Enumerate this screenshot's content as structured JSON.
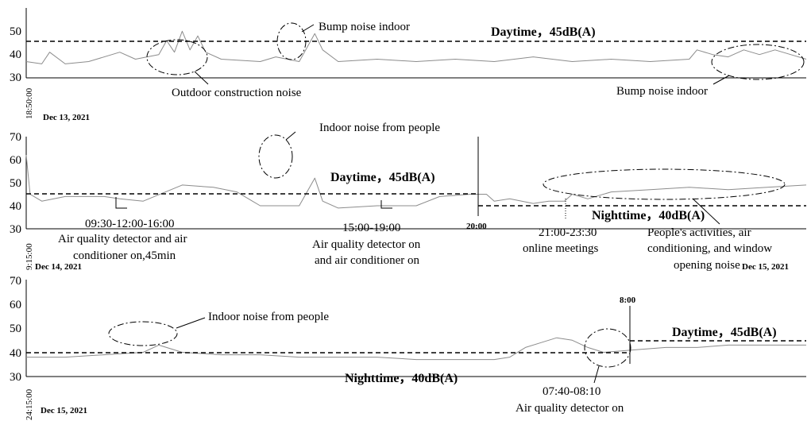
{
  "chart_data": [
    {
      "type": "line",
      "ylim": [
        30,
        60
      ],
      "yticks": [
        "50",
        "40",
        "30"
      ],
      "start_time": "18:50:00",
      "date_label": "Dec 13, 2021",
      "series": [
        {
          "points": [
            [
              0,
              37
            ],
            [
              0.02,
              36
            ],
            [
              0.03,
              41
            ],
            [
              0.05,
              36
            ],
            [
              0.08,
              37
            ],
            [
              0.12,
              41
            ],
            [
              0.14,
              38
            ],
            [
              0.17,
              40
            ],
            [
              0.18,
              46
            ],
            [
              0.19,
              41
            ],
            [
              0.2,
              50
            ],
            [
              0.21,
              42
            ],
            [
              0.22,
              48
            ],
            [
              0.23,
              41
            ],
            [
              0.25,
              38
            ],
            [
              0.3,
              37
            ],
            [
              0.32,
              39
            ],
            [
              0.35,
              37
            ],
            [
              0.36,
              43
            ],
            [
              0.37,
              49
            ],
            [
              0.38,
              42
            ],
            [
              0.4,
              37
            ],
            [
              0.45,
              38
            ],
            [
              0.5,
              37
            ],
            [
              0.55,
              38
            ],
            [
              0.6,
              37
            ],
            [
              0.65,
              39
            ],
            [
              0.7,
              37
            ],
            [
              0.75,
              38
            ],
            [
              0.8,
              37
            ],
            [
              0.85,
              38
            ],
            [
              0.86,
              42
            ],
            [
              0.88,
              40
            ],
            [
              0.9,
              39
            ],
            [
              0.92,
              42
            ],
            [
              0.94,
              40
            ],
            [
              0.96,
              42
            ],
            [
              0.98,
              40
            ],
            [
              1,
              38
            ]
          ]
        }
      ],
      "threshold": {
        "value": 45,
        "label": "Daytime，45dB(A)"
      },
      "annotations": [
        {
          "text": "Outdoor construction noise"
        },
        {
          "text": "Bump noise indoor"
        },
        {
          "text": "Bump noise indoor"
        }
      ]
    },
    {
      "type": "line",
      "ylim": [
        30,
        70
      ],
      "yticks": [
        "70",
        "60",
        "50",
        "40",
        "30"
      ],
      "start_time": "9:15:00",
      "date_label": "Dec 14, 2021",
      "date_label_right": "Dec 15, 2021",
      "marker_label": "20:00",
      "series": [
        {
          "points": [
            [
              0,
              62
            ],
            [
              0.005,
              45
            ],
            [
              0.02,
              42
            ],
            [
              0.05,
              44
            ],
            [
              0.1,
              44
            ],
            [
              0.12,
              43
            ],
            [
              0.15,
              42
            ],
            [
              0.2,
              49
            ],
            [
              0.24,
              48
            ],
            [
              0.27,
              46
            ],
            [
              0.3,
              40
            ],
            [
              0.33,
              40
            ],
            [
              0.35,
              40
            ],
            [
              0.37,
              52
            ],
            [
              0.38,
              42
            ],
            [
              0.4,
              39
            ],
            [
              0.45,
              40
            ],
            [
              0.5,
              40
            ],
            [
              0.53,
              44
            ],
            [
              0.57,
              45
            ],
            [
              0.59,
              45
            ],
            [
              0.6,
              42
            ],
            [
              0.62,
              43
            ],
            [
              0.65,
              41
            ],
            [
              0.67,
              42
            ],
            [
              0.69,
              42
            ],
            [
              0.7,
              45
            ],
            [
              0.72,
              43
            ],
            [
              0.75,
              46
            ],
            [
              0.8,
              47
            ],
            [
              0.85,
              48
            ],
            [
              0.9,
              47
            ],
            [
              0.95,
              48
            ],
            [
              1,
              49
            ]
          ]
        }
      ],
      "thresholds": [
        {
          "value": 45,
          "label": "Daytime，45dB(A)"
        },
        {
          "value": 40,
          "label": "Nighttime，40dB(A)"
        }
      ],
      "annotations": [
        {
          "text": "Indoor noise from people"
        },
        {
          "text": "09:30-12:00-16:00"
        },
        {
          "text": "Air quality detector and air"
        },
        {
          "text": "conditioner on,45min"
        },
        {
          "text": "15:00-19:00"
        },
        {
          "text": "Air quality detector on"
        },
        {
          "text": "and air conditioner on"
        },
        {
          "text": "21:00-23:30"
        },
        {
          "text": "online meetings"
        },
        {
          "text": "People's activities, air"
        },
        {
          "text": "conditioning, and window"
        },
        {
          "text": "opening noise"
        }
      ]
    },
    {
      "type": "line",
      "ylim": [
        30,
        70
      ],
      "yticks": [
        "70",
        "60",
        "50",
        "40",
        "30"
      ],
      "start_time": "24:15:00",
      "date_label": "Dec 15, 2021",
      "marker_label": "8:00",
      "series": [
        {
          "points": [
            [
              0,
              38
            ],
            [
              0.05,
              38
            ],
            [
              0.1,
              39
            ],
            [
              0.15,
              40
            ],
            [
              0.17,
              43
            ],
            [
              0.2,
              40
            ],
            [
              0.25,
              39
            ],
            [
              0.3,
              39
            ],
            [
              0.35,
              38
            ],
            [
              0.4,
              38
            ],
            [
              0.45,
              38
            ],
            [
              0.5,
              37
            ],
            [
              0.55,
              37
            ],
            [
              0.6,
              37
            ],
            [
              0.62,
              38
            ],
            [
              0.64,
              42
            ],
            [
              0.66,
              44
            ],
            [
              0.68,
              46
            ],
            [
              0.7,
              45
            ],
            [
              0.72,
              42
            ],
            [
              0.74,
              40
            ],
            [
              0.78,
              41
            ],
            [
              0.82,
              42
            ],
            [
              0.86,
              42
            ],
            [
              0.9,
              43
            ],
            [
              0.94,
              43
            ],
            [
              0.97,
              43
            ],
            [
              1,
              43
            ]
          ]
        }
      ],
      "thresholds": [
        {
          "value": 40,
          "label": "Nighttime，40dB(A)"
        },
        {
          "value": 45,
          "label": "Daytime，45dB(A)"
        }
      ],
      "annotations": [
        {
          "text": "Indoor noise from people"
        },
        {
          "text": "07:40-08:10"
        },
        {
          "text": "Air quality detector on"
        }
      ]
    }
  ]
}
